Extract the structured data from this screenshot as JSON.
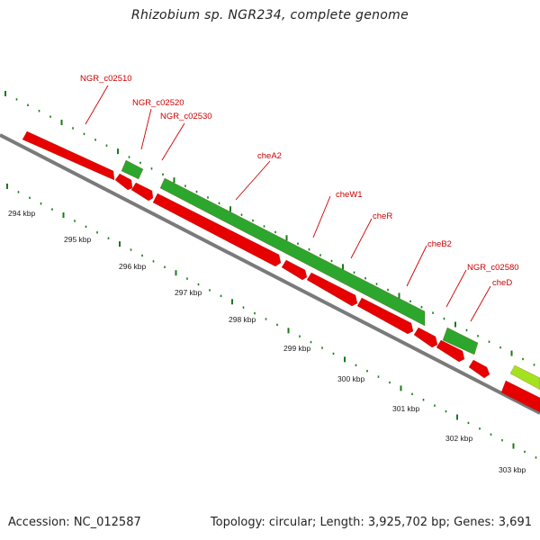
{
  "title": "Rhizobium sp. NGR234, complete genome",
  "footer": {
    "accession": "Accession: NC_012587",
    "summary": "Topology: circular; Length: 3,925,702 bp; Genes: 3,691"
  },
  "colors": {
    "reverse_strand_gene": "#e60000",
    "forward_strand_gene": "#2da62d",
    "highlight_gene": "#a4e21f",
    "backbone": "#8c8c8c",
    "tick": "#1a7a1a",
    "label": "#cc0000"
  },
  "scale": {
    "labels": [
      "294 kbp",
      "295 kbp",
      "296 kbp",
      "297 kbp",
      "298 kbp",
      "299 kbp",
      "300 kbp",
      "301 kbp",
      "302 kbp",
      "303 kbp"
    ]
  },
  "gene_labels": [
    "NGR_c02510",
    "NGR_c02520",
    "NGR_c02530",
    "cheA2",
    "cheW1",
    "cheR",
    "cheB2",
    "NGR_c02580",
    "cheD"
  ]
}
